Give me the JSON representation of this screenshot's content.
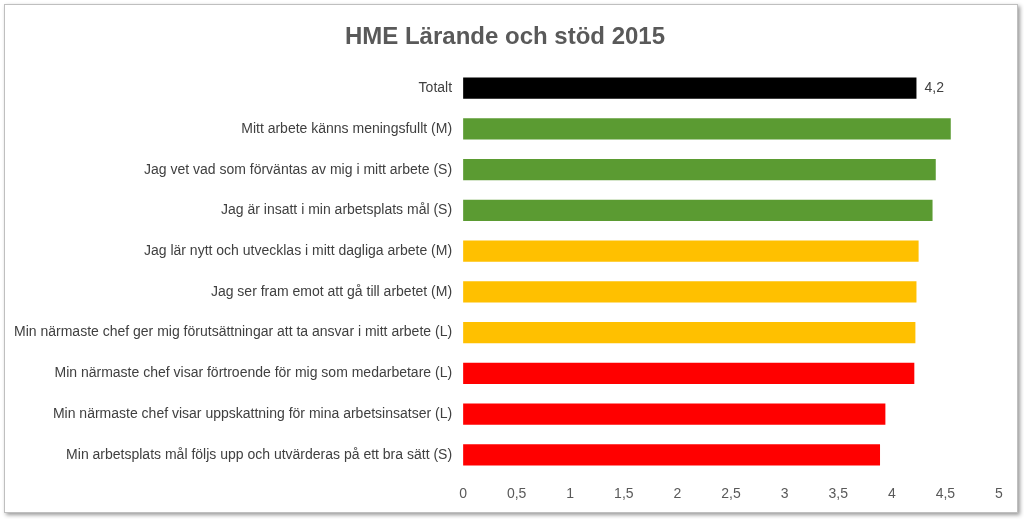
{
  "chart_data": {
    "type": "bar",
    "orientation": "horizontal",
    "title": "HME Lärande och stöd 2015",
    "categories": [
      "Totalt",
      "Mitt arbete känns meningsfullt (M)",
      "Jag vet vad som förväntas av mig i mitt arbete (S)",
      "Jag är insatt i min arbetsplats mål (S)",
      "Jag lär nytt och utvecklas i mitt dagliga arbete (M)",
      "Jag ser fram emot att gå till arbetet (M)",
      "Min närmaste chef ger mig förutsättningar att ta ansvar i mitt arbete (L)",
      "Min närmaste chef visar förtroende för mig som medarbetare (L)",
      "Min närmaste chef visar uppskattning för mina arbetsinsatser (L)",
      "Min arbetsplats mål följs upp och utvärderas på ett bra sätt (S)"
    ],
    "values": [
      4.23,
      4.55,
      4.41,
      4.38,
      4.25,
      4.23,
      4.22,
      4.21,
      3.94,
      3.89
    ],
    "value_labels": [
      "4,2",
      null,
      null,
      null,
      null,
      null,
      null,
      null,
      null,
      null
    ],
    "data_labels": true,
    "colors": [
      "#000000",
      "#5b9b32",
      "#5b9b32",
      "#5b9b32",
      "#ffc000",
      "#ffc000",
      "#ffc000",
      "#ff0000",
      "#ff0000",
      "#ff0000"
    ],
    "xlim": [
      0,
      5
    ],
    "xticks": [
      0,
      {
        "value": 0.5,
        "label": "0,5"
      },
      1,
      {
        "value": 1.5,
        "label": "1,5"
      },
      2,
      {
        "value": 2.5,
        "label": "2,5"
      },
      3,
      {
        "value": 3.5,
        "label": "3,5"
      },
      4,
      {
        "value": 4.5,
        "label": "4,5"
      },
      5
    ],
    "grid": false
  }
}
